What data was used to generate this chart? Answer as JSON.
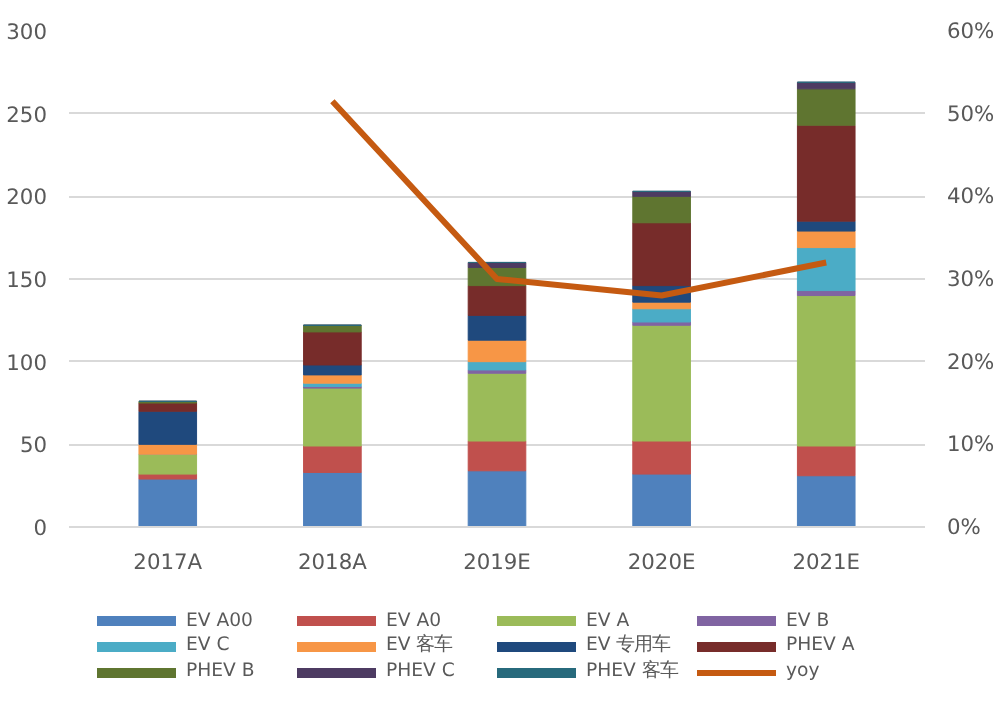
{
  "chart_data": {
    "type": "bar",
    "stacked": true,
    "categories": [
      "2017A",
      "2018A",
      "2019E",
      "2020E",
      "2021E"
    ],
    "ylim": [
      0,
      300
    ],
    "yticks": [
      0,
      50,
      100,
      150,
      200,
      250,
      300
    ],
    "y2lim": [
      0,
      60
    ],
    "y2ticks": [
      {
        "value": 0,
        "label": "0%"
      },
      {
        "value": 10,
        "label": "10%"
      },
      {
        "value": 20,
        "label": "20%"
      },
      {
        "value": 30,
        "label": "30%"
      },
      {
        "value": 40,
        "label": "40%"
      },
      {
        "value": 50,
        "label": "50%"
      },
      {
        "value": 60,
        "label": "60%"
      }
    ],
    "grid": "y",
    "legend": "bottom",
    "series": [
      {
        "name": "EV A00",
        "color": "#4f81bd",
        "values": [
          29,
          33,
          34,
          32,
          31
        ]
      },
      {
        "name": "EV A0",
        "color": "#c0504d",
        "values": [
          3,
          16,
          18,
          20,
          18
        ]
      },
      {
        "name": "EV A",
        "color": "#9bbb59",
        "values": [
          12,
          35,
          41,
          70,
          91
        ]
      },
      {
        "name": "EV B",
        "color": "#8064a2",
        "values": [
          0,
          1,
          2,
          2,
          3
        ]
      },
      {
        "name": "EV C",
        "color": "#4bacc6",
        "values": [
          0,
          2,
          5,
          8,
          26
        ]
      },
      {
        "name": "EV 客车",
        "color": "#f79646",
        "values": [
          6,
          5,
          13,
          4,
          10
        ]
      },
      {
        "name": "EV 专用车",
        "color": "#1f497d",
        "values": [
          20,
          6,
          15,
          10,
          6
        ]
      },
      {
        "name": "PHEV A",
        "color": "#772c2a",
        "values": [
          5,
          20,
          18,
          38,
          58
        ]
      },
      {
        "name": "PHEV B",
        "color": "#5f7530",
        "values": [
          1,
          4,
          11,
          16,
          22
        ]
      },
      {
        "name": "PHEV C",
        "color": "#4d3b62",
        "values": [
          0,
          0,
          3,
          3,
          4
        ]
      },
      {
        "name": "PHEV 客车",
        "color": "#276a7c",
        "values": [
          0,
          0,
          0,
          0,
          0
        ]
      },
      {
        "name": "yoy",
        "type": "line",
        "axis": "y2",
        "color": "#c55a11",
        "values": [
          null,
          51.5,
          30,
          28,
          32
        ]
      }
    ]
  }
}
